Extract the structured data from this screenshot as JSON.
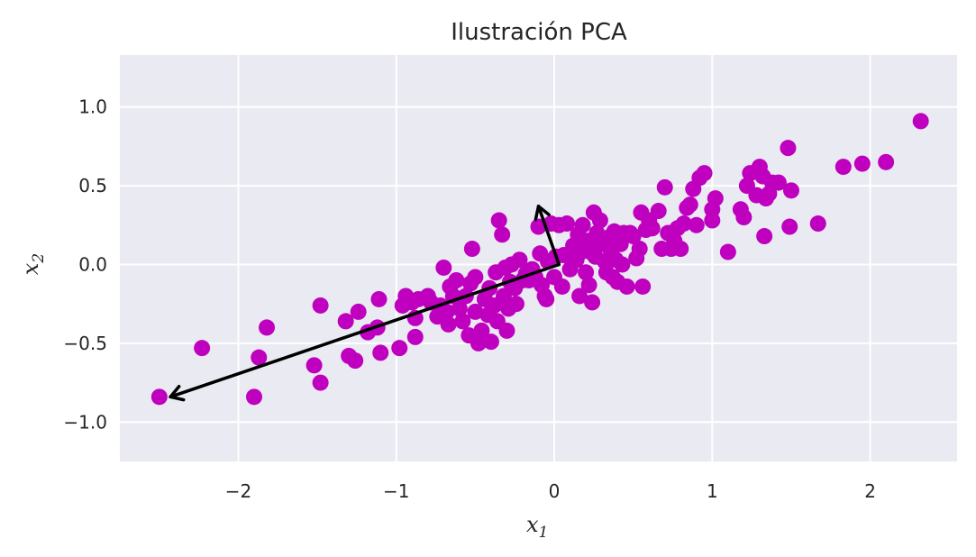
{
  "chart_data": {
    "type": "scatter",
    "title": "Ilustración PCA",
    "xlabel": {
      "base": "x",
      "sub": "1"
    },
    "ylabel": {
      "base": "x",
      "sub": "2"
    },
    "xlim": [
      -2.75,
      2.55
    ],
    "ylim": [
      -1.25,
      1.33
    ],
    "xticks": [
      -2,
      -1,
      0,
      1,
      2
    ],
    "xtick_labels": [
      "−2",
      "−1",
      "0",
      "1",
      "2"
    ],
    "yticks": [
      -1.0,
      -0.5,
      0.0,
      0.5,
      1.0
    ],
    "ytick_labels": [
      "−1.0",
      "−0.5",
      "0.0",
      "0.5",
      "1.0"
    ],
    "grid": true,
    "colors": {
      "point": "#bf00bf",
      "arrow": "#000000",
      "background": "#eaeaf2",
      "grid": "#ffffff"
    },
    "points": [
      [
        -2.5,
        -0.84
      ],
      [
        -2.23,
        -0.53
      ],
      [
        -1.9,
        -0.84
      ],
      [
        -1.87,
        -0.59
      ],
      [
        -1.82,
        -0.4
      ],
      [
        -1.52,
        -0.64
      ],
      [
        -1.48,
        -0.75
      ],
      [
        -1.48,
        -0.26
      ],
      [
        -1.32,
        -0.36
      ],
      [
        -1.3,
        -0.58
      ],
      [
        -1.26,
        -0.61
      ],
      [
        -1.24,
        -0.3
      ],
      [
        -1.18,
        -0.43
      ],
      [
        -1.12,
        -0.4
      ],
      [
        -1.11,
        -0.22
      ],
      [
        -1.1,
        -0.56
      ],
      [
        -0.98,
        -0.53
      ],
      [
        -0.96,
        -0.26
      ],
      [
        -0.94,
        -0.2
      ],
      [
        -0.9,
        -0.24
      ],
      [
        -0.88,
        -0.34
      ],
      [
        -0.88,
        -0.46
      ],
      [
        -0.86,
        -0.22
      ],
      [
        -0.8,
        -0.2
      ],
      [
        -0.78,
        -0.24
      ],
      [
        -0.74,
        -0.33
      ],
      [
        -0.72,
        -0.26
      ],
      [
        -0.7,
        -0.02
      ],
      [
        -0.68,
        -0.3
      ],
      [
        -0.67,
        -0.38
      ],
      [
        -0.66,
        -0.14
      ],
      [
        -0.64,
        -0.2
      ],
      [
        -0.62,
        -0.1
      ],
      [
        -0.6,
        -0.28
      ],
      [
        -0.58,
        -0.36
      ],
      [
        -0.56,
        -0.2
      ],
      [
        -0.54,
        -0.45
      ],
      [
        -0.53,
        -0.12
      ],
      [
        -0.52,
        0.1
      ],
      [
        -0.5,
        -0.08
      ],
      [
        -0.5,
        -0.3
      ],
      [
        -0.48,
        -0.5
      ],
      [
        -0.46,
        -0.42
      ],
      [
        -0.44,
        -0.22
      ],
      [
        -0.42,
        -0.32
      ],
      [
        -0.41,
        -0.15
      ],
      [
        -0.4,
        -0.49
      ],
      [
        -0.38,
        -0.26
      ],
      [
        -0.37,
        -0.05
      ],
      [
        -0.36,
        -0.36
      ],
      [
        -0.35,
        0.28
      ],
      [
        -0.33,
        0.19
      ],
      [
        -0.32,
        -0.2
      ],
      [
        -0.31,
        -0.02
      ],
      [
        -0.3,
        -0.42
      ],
      [
        -0.29,
        -0.28
      ],
      [
        -0.28,
        -0.11
      ],
      [
        -0.27,
        0.0
      ],
      [
        -0.25,
        -0.15
      ],
      [
        -0.24,
        -0.25
      ],
      [
        -0.22,
        0.03
      ],
      [
        -0.2,
        -0.1
      ],
      [
        -0.18,
        -0.06
      ],
      [
        -0.16,
        -0.1
      ],
      [
        -0.14,
        -0.03
      ],
      [
        -0.12,
        -0.08
      ],
      [
        -0.1,
        0.24
      ],
      [
        -0.09,
        0.07
      ],
      [
        -0.08,
        -0.13
      ],
      [
        -0.06,
        -0.2
      ],
      [
        -0.05,
        -0.22
      ],
      [
        -0.04,
        0.02
      ],
      [
        -0.02,
        0.26
      ],
      [
        0.0,
        -0.08
      ],
      [
        0.01,
        0.05
      ],
      [
        0.03,
        0.25
      ],
      [
        0.05,
        -0.14
      ],
      [
        0.06,
        0.06
      ],
      [
        0.08,
        0.26
      ],
      [
        0.1,
        -0.03
      ],
      [
        0.12,
        0.12
      ],
      [
        0.14,
        0.03
      ],
      [
        0.15,
        0.19
      ],
      [
        0.16,
        -0.2
      ],
      [
        0.17,
        0.08
      ],
      [
        0.18,
        0.25
      ],
      [
        0.2,
        -0.05
      ],
      [
        0.21,
        0.15
      ],
      [
        0.22,
        -0.13
      ],
      [
        0.23,
        0.08
      ],
      [
        0.24,
        -0.24
      ],
      [
        0.25,
        0.33
      ],
      [
        0.26,
        0.05
      ],
      [
        0.27,
        0.2
      ],
      [
        0.29,
        0.28
      ],
      [
        0.3,
        0.13
      ],
      [
        0.32,
        0.02
      ],
      [
        0.33,
        -0.05
      ],
      [
        0.34,
        0.17
      ],
      [
        0.36,
        0.08
      ],
      [
        0.37,
        -0.08
      ],
      [
        0.38,
        0.21
      ],
      [
        0.39,
        0.03
      ],
      [
        0.4,
        -0.11
      ],
      [
        0.42,
        0.13
      ],
      [
        0.43,
        0.0
      ],
      [
        0.44,
        0.2
      ],
      [
        0.46,
        -0.14
      ],
      [
        0.48,
        0.2
      ],
      [
        0.5,
        0.18
      ],
      [
        0.52,
        0.04
      ],
      [
        0.54,
        0.1
      ],
      [
        0.55,
        0.33
      ],
      [
        0.56,
        -0.14
      ],
      [
        0.58,
        0.22
      ],
      [
        0.6,
        0.28
      ],
      [
        0.62,
        0.23
      ],
      [
        0.66,
        0.34
      ],
      [
        0.68,
        0.1
      ],
      [
        0.7,
        0.49
      ],
      [
        0.72,
        0.2
      ],
      [
        0.74,
        0.1
      ],
      [
        0.76,
        0.15
      ],
      [
        0.78,
        0.23
      ],
      [
        0.8,
        0.1
      ],
      [
        0.82,
        0.26
      ],
      [
        0.84,
        0.36
      ],
      [
        0.86,
        0.38
      ],
      [
        0.88,
        0.48
      ],
      [
        0.9,
        0.25
      ],
      [
        0.92,
        0.55
      ],
      [
        0.95,
        0.58
      ],
      [
        1.0,
        0.28
      ],
      [
        1.02,
        0.42
      ],
      [
        1.0,
        0.35
      ],
      [
        1.1,
        0.08
      ],
      [
        1.18,
        0.35
      ],
      [
        1.2,
        0.3
      ],
      [
        1.22,
        0.5
      ],
      [
        1.24,
        0.58
      ],
      [
        1.28,
        0.44
      ],
      [
        1.3,
        0.62
      ],
      [
        1.32,
        0.56
      ],
      [
        1.34,
        0.42
      ],
      [
        1.36,
        0.45
      ],
      [
        1.38,
        0.52
      ],
      [
        1.42,
        0.52
      ],
      [
        1.48,
        0.74
      ],
      [
        1.33,
        0.18
      ],
      [
        1.49,
        0.24
      ],
      [
        1.5,
        0.47
      ],
      [
        1.67,
        0.26
      ],
      [
        1.83,
        0.62
      ],
      [
        1.95,
        0.64
      ],
      [
        2.1,
        0.65
      ],
      [
        2.32,
        0.91
      ]
    ],
    "mean": [
      0.03,
      0.0
    ],
    "components": [
      {
        "end": [
          -2.43,
          -0.84
        ]
      },
      {
        "end": [
          -0.1,
          0.37
        ]
      }
    ]
  }
}
